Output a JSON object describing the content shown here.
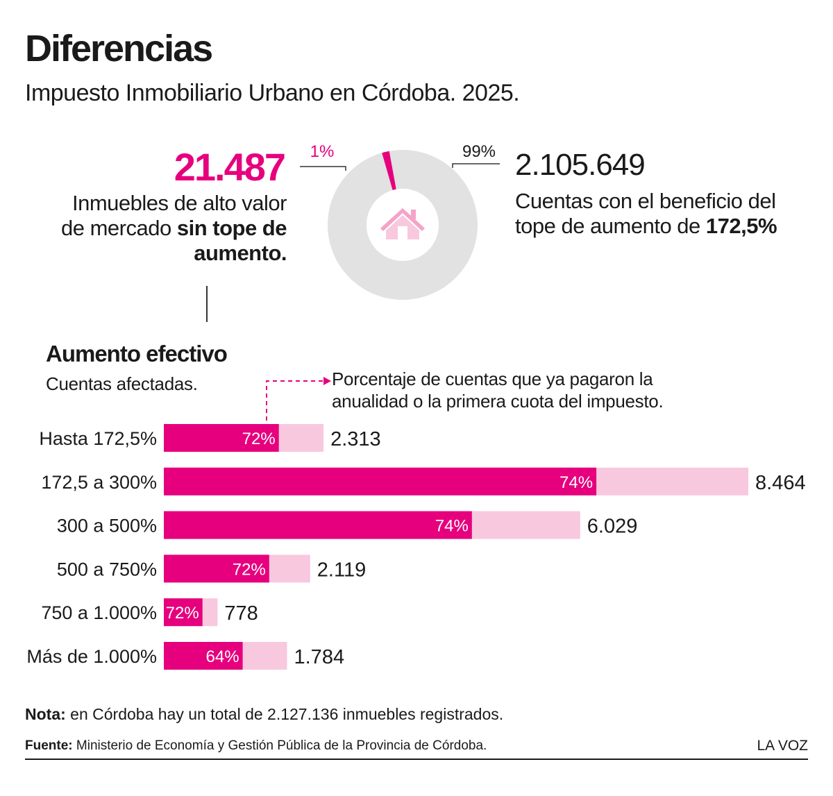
{
  "header": {
    "title": "Diferencias",
    "subtitle": "Impuesto Inmobiliario Urbano en Córdoba. 2025."
  },
  "summary": {
    "left": {
      "number": "21.487",
      "desc_prefix": "Inmuebles de alto valor de mercado",
      "desc_bold": "sin tope de aumento."
    },
    "right": {
      "number": "2.105.649",
      "desc_prefix": "Cuentas con el beneficio del tope de aumento de",
      "desc_bold": "172,5%"
    },
    "donut": {
      "small_label": "1%",
      "large_label": "99%",
      "small_share": 1,
      "large_share": 99,
      "icon": "house-icon"
    }
  },
  "section": {
    "title": "Aumento efectivo",
    "subtitle": "Cuentas afectadas.",
    "note": "Porcentaje de cuentas que ya pagaron la anualidad o la primera cuota del impuesto."
  },
  "chart_data": {
    "type": "bar",
    "orientation": "horizontal",
    "categories": [
      "Hasta 172,5%",
      "172,5 a 300%",
      "300 a 500%",
      "500 a 750%",
      "750 a 1.000%",
      "Más de 1.000%"
    ],
    "series": [
      {
        "values": [
          2313,
          8464,
          6029,
          2119,
          778,
          1784
        ],
        "labels": [
          "2.313",
          "8.464",
          "6.029",
          "2.119",
          "778",
          "1.784"
        ]
      }
    ],
    "paid_share": [
      72,
      74,
      74,
      72,
      72,
      64
    ],
    "paid_share_labels": [
      "72%",
      "74%",
      "74%",
      "72%",
      "72%",
      "64%"
    ],
    "xlim": [
      0,
      8464
    ]
  },
  "footer": {
    "nota_label": "Nota:",
    "nota_text": "en Córdoba hay un total de 2.127.136 inmuebles registrados.",
    "fuente_label": "Fuente:",
    "fuente_text": "Ministerio de Economía y Gestión Pública de la Provincia de Córdoba.",
    "brand": "LA VOZ"
  },
  "colors": {
    "accent": "#e6007e",
    "accent_light": "#f8c8df",
    "donut_gray": "#e2e2e2",
    "text": "#1a1a1a"
  }
}
